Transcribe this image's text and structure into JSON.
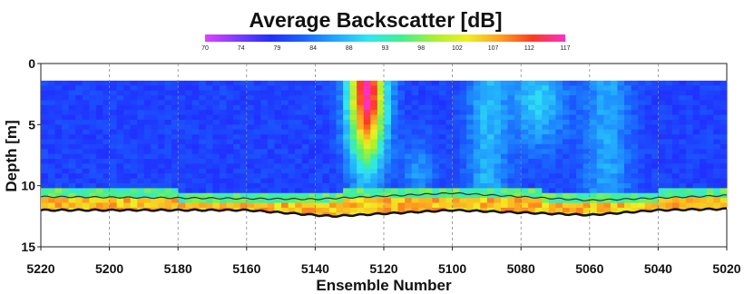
{
  "chart_data": {
    "type": "heatmap",
    "title": "Average Backscatter [dB]",
    "xlabel": "Ensemble Number",
    "ylabel": "Depth [m]",
    "xlim": [
      5220,
      5020
    ],
    "ylim": [
      0,
      15
    ],
    "x_ticks": [
      5220,
      5200,
      5180,
      5160,
      5140,
      5120,
      5100,
      5080,
      5060,
      5040,
      5020
    ],
    "y_ticks": [
      0,
      5,
      10,
      15
    ],
    "grid": "vertical dashed",
    "colorbar": {
      "label": "dB",
      "range": [
        70,
        117
      ],
      "ticks": [
        70,
        74,
        79,
        84,
        88,
        93,
        98,
        102,
        107,
        112,
        117
      ],
      "colors": [
        "#e040ff",
        "#7a3cff",
        "#2030ff",
        "#1a64ff",
        "#22a8ff",
        "#30e6f0",
        "#40f090",
        "#a8f030",
        "#f0f020",
        "#ffa020",
        "#ff3a20",
        "#ff30c8"
      ]
    },
    "data_top_depth": 1.4,
    "water_column_level_db": 80,
    "series": [
      {
        "name": "",
        "kind": "high backscatter plume (dB)",
        "x": [
          5131,
          5125,
          5119
        ],
        "y": [
          117,
          108,
          95
        ]
      },
      {
        "name": "",
        "kind": "surface depth of surface line",
        "x": [
          5220,
          5140,
          5100,
          5060,
          5020
        ],
        "y": [
          10.9,
          11.1,
          10.6,
          11.2,
          10.8
        ]
      },
      {
        "name": "",
        "kind": "bottom depth line",
        "x": [
          5220,
          5160,
          5135,
          5100,
          5060,
          5040,
          5020
        ],
        "y": [
          12.0,
          12.0,
          12.5,
          12.0,
          12.4,
          12.0,
          11.9
        ]
      }
    ]
  }
}
